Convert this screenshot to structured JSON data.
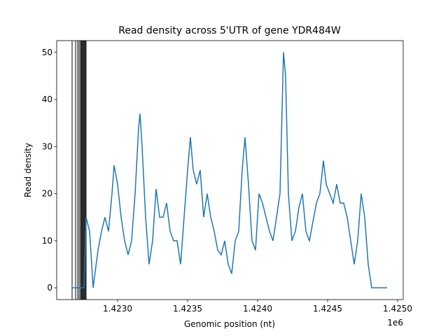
{
  "chart_data": {
    "type": "line",
    "title": "Read density across 5'UTR of gene YDR484W",
    "x_label": "Genomic position (nt)",
    "y_label": "Read density",
    "x_offset_label": "1e6",
    "x": [
      1422675,
      1422710,
      1422760,
      1422775,
      1422800,
      1422825,
      1422860,
      1422885,
      1422910,
      1422935,
      1422960,
      1422975,
      1423000,
      1423025,
      1423050,
      1423075,
      1423100,
      1423125,
      1423150,
      1423160,
      1423175,
      1423200,
      1423225,
      1423250,
      1423275,
      1423300,
      1423325,
      1423350,
      1423375,
      1423400,
      1423425,
      1423450,
      1423475,
      1423500,
      1423520,
      1423540,
      1423565,
      1423590,
      1423615,
      1423640,
      1423665,
      1423690,
      1423715,
      1423740,
      1423765,
      1423790,
      1423815,
      1423840,
      1423865,
      1423890,
      1423910,
      1423935,
      1423960,
      1423985,
      1424010,
      1424035,
      1424060,
      1424085,
      1424110,
      1424135,
      1424160,
      1424185,
      1424200,
      1424220,
      1424245,
      1424270,
      1424295,
      1424320,
      1424345,
      1424370,
      1424395,
      1424420,
      1424445,
      1424470,
      1424490,
      1424515,
      1424540,
      1424565,
      1424590,
      1424615,
      1424640,
      1424665,
      1424690,
      1424715,
      1424740,
      1424765,
      1424790,
      1424815,
      1424925
    ],
    "series": [
      {
        "color": "#1f77b4",
        "values": [
          0,
          0,
          0,
          15,
          12,
          0,
          8,
          12,
          15,
          12,
          20,
          26,
          22,
          15,
          10,
          7,
          10,
          20,
          34,
          37,
          30,
          15,
          5,
          10,
          21,
          15,
          15,
          18,
          12,
          10,
          10,
          5,
          15,
          25,
          32,
          25,
          22,
          25,
          15,
          20,
          15,
          12,
          8,
          7,
          10,
          5,
          3,
          10,
          12,
          25,
          32,
          22,
          10,
          8,
          20,
          18,
          15,
          12,
          10,
          15,
          20,
          50,
          45,
          20,
          10,
          12,
          17,
          20,
          12,
          10,
          14,
          18,
          20,
          27,
          22,
          20,
          18,
          22,
          18,
          18,
          15,
          10,
          5,
          10,
          20,
          15,
          5,
          0,
          0
        ]
      }
    ],
    "vlines": {
      "color": "#000000",
      "x": [
        1422675,
        1422700,
        1422715,
        1422725,
        1422735,
        1422740,
        1422745,
        1422750,
        1422755,
        1422760,
        1422765,
        1422770,
        1422775
      ]
    },
    "xlim": [
      1422565,
      1425040
    ],
    "ylim": [
      -2.5,
      52.5
    ],
    "xticks": [
      {
        "value": 1423000,
        "label": "1.4230"
      },
      {
        "value": 1423500,
        "label": "1.4235"
      },
      {
        "value": 1424000,
        "label": "1.4240"
      },
      {
        "value": 1424500,
        "label": "1.4245"
      },
      {
        "value": 1425000,
        "label": "1.4250"
      }
    ],
    "yticks": [
      0,
      10,
      20,
      30,
      40,
      50
    ],
    "grid": false
  }
}
